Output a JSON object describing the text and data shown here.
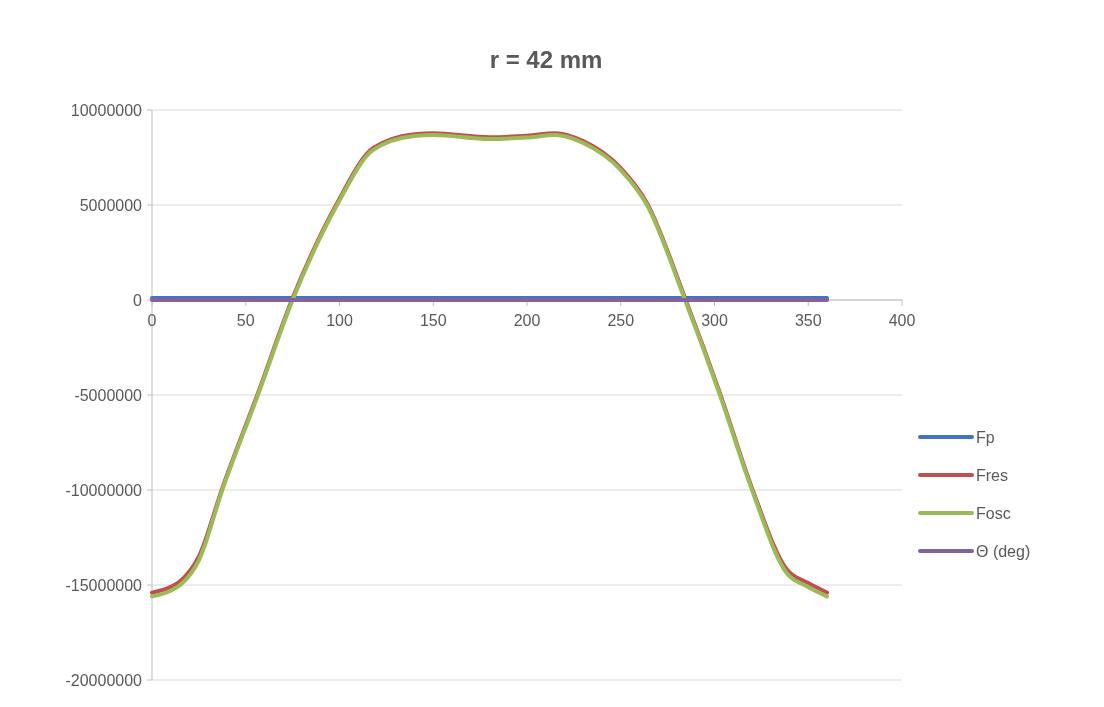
{
  "chart_data": {
    "type": "line",
    "title": "r = 42 mm",
    "xlim": [
      0,
      400
    ],
    "xticks": [
      0,
      50,
      100,
      150,
      200,
      250,
      300,
      350,
      400
    ],
    "ylim": [
      -20000000,
      10000000
    ],
    "yticks": [
      -20000000,
      -15000000,
      -10000000,
      -5000000,
      0,
      5000000,
      10000000
    ],
    "grid": "y",
    "legend": "right",
    "marker": "none",
    "line_style": "solid",
    "series": [
      {
        "name": "Fp",
        "color": "#4472c4",
        "x": [
          0,
          360
        ],
        "values": [
          100000,
          100000
        ]
      },
      {
        "name": "Fres",
        "color": "#c0504d",
        "x": [
          0,
          10,
          15,
          25,
          37.5,
          56.5,
          75,
          98.7,
          118,
          140,
          150,
          180,
          200,
          215,
          230,
          250,
          264,
          284.3,
          302.9,
          320,
          338.7,
          350,
          360
        ],
        "values": [
          -15400000,
          -15100000,
          -14800000,
          -13500000,
          -9900000,
          -4900000,
          100000,
          5100000,
          8000000,
          8730000,
          8780000,
          8570000,
          8650000,
          8780000,
          8360000,
          6940000,
          5100000,
          100000,
          -4900000,
          -9900000,
          -14200000,
          -14900000,
          -15400000
        ]
      },
      {
        "name": "Fosc",
        "color": "#9bbb59",
        "x": [
          0,
          10,
          15,
          25,
          37.5,
          56.5,
          75,
          98.7,
          118,
          140,
          150,
          180,
          200,
          215,
          230,
          250,
          264,
          284.3,
          302.9,
          320,
          338.7,
          350,
          360
        ],
        "values": [
          -15600000,
          -15300000,
          -15000000,
          -13700000,
          -10000000,
          -5000000,
          0,
          5000000,
          7900000,
          8630000,
          8680000,
          8470000,
          8550000,
          8680000,
          8260000,
          6840000,
          5000000,
          0,
          -5000000,
          -10000000,
          -14400000,
          -15100000,
          -15600000
        ]
      },
      {
        "name": "Θ (deg)",
        "color": "#8064a2",
        "x": [
          0,
          360
        ],
        "values": [
          0,
          0
        ]
      }
    ]
  }
}
